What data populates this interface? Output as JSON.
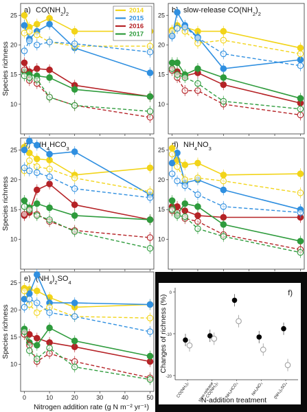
{
  "chart_data": [
    {
      "type": "line",
      "title": "a) CO(NH2)2",
      "x": [
        0,
        2,
        5,
        10,
        20,
        50
      ],
      "ylim": [
        5,
        27
      ],
      "ylabel": "Species richness",
      "series": [
        {
          "name": "2014",
          "values": [
            25,
            23,
            23.5,
            24.5,
            22.3,
            22.3
          ]
        },
        {
          "name": "2015",
          "values": [
            23.3,
            21,
            22.3,
            23.5,
            19.5,
            15.3
          ]
        },
        {
          "name": "2016",
          "values": [
            17,
            15.5,
            16,
            15.8,
            13.2,
            11.3
          ]
        },
        {
          "name": "2017",
          "values": [
            15.5,
            15,
            14.8,
            14.5,
            12.5,
            11.3
          ]
        },
        {
          "name": "2014 (dashed)",
          "values": [
            22,
            22.3,
            21.7,
            20.5,
            19.8,
            19.8
          ]
        },
        {
          "name": "2015 (dashed)",
          "values": [
            19,
            20.7,
            20,
            20.5,
            20.2,
            18.8
          ]
        },
        {
          "name": "2016 (dashed)",
          "values": [
            15.8,
            14,
            13.5,
            11.2,
            9.8,
            7.8
          ]
        },
        {
          "name": "2017 (dashed)",
          "values": [
            14.8,
            14.5,
            14.2,
            11.2,
            9.8,
            8.8
          ]
        }
      ]
    },
    {
      "type": "line",
      "title": "b) slow-release CO(NH2)2",
      "x": [
        0,
        2,
        5,
        10,
        20,
        50
      ],
      "ylim": [
        5,
        27
      ],
      "ylabel": "",
      "series": [
        {
          "name": "2014",
          "values": [
            22.5,
            23.3,
            23,
            22.3,
            22.3,
            19.5
          ]
        },
        {
          "name": "2015",
          "values": [
            21.5,
            25.5,
            23.3,
            21.3,
            16,
            17.5
          ]
        },
        {
          "name": "2016",
          "values": [
            16,
            15.5,
            14.8,
            15.3,
            13.3,
            10.2
          ]
        },
        {
          "name": "2017",
          "values": [
            17,
            17,
            15,
            16,
            14.5,
            11
          ]
        },
        {
          "name": "2014 (dashed)",
          "values": [
            22.3,
            22.8,
            22.3,
            20.3,
            20.8,
            18.5
          ]
        },
        {
          "name": "2015 (dashed)",
          "values": [
            21.5,
            22.8,
            23,
            21.2,
            18.5,
            16.5
          ]
        },
        {
          "name": "2016 (dashed)",
          "values": [
            15.7,
            14.5,
            12.3,
            12.3,
            10,
            8.2
          ]
        },
        {
          "name": "2017 (dashed)",
          "values": [
            16,
            15,
            14.5,
            13.5,
            10.5,
            9.2
          ]
        }
      ]
    },
    {
      "type": "line",
      "title": "c) NH4HCO3",
      "x": [
        0,
        2,
        5,
        10,
        20,
        50
      ],
      "ylim": [
        5,
        27
      ],
      "ylabel": "Species richness",
      "series": [
        {
          "name": "2014",
          "values": [
            25.5,
            24.5,
            23.5,
            23.3,
            20.8,
            22
          ]
        },
        {
          "name": "2015",
          "values": [
            25,
            26.5,
            25.8,
            24.3,
            24.7,
            17.5
          ]
        },
        {
          "name": "2016",
          "values": [
            14,
            14.5,
            18.3,
            19.3,
            15.8,
            13.3
          ]
        },
        {
          "name": "2017",
          "values": [
            16.5,
            15.3,
            16,
            15.3,
            14,
            13.3
          ]
        },
        {
          "name": "2014 (dashed)",
          "values": [
            21.5,
            23.2,
            22.2,
            21.8,
            20.3,
            18
          ]
        },
        {
          "name": "2015 (dashed)",
          "values": [
            22,
            21.5,
            21.2,
            20.5,
            18.5,
            17
          ]
        },
        {
          "name": "2016 (dashed)",
          "values": [
            14.2,
            14.8,
            14.2,
            13,
            11.5,
            10.3
          ]
        },
        {
          "name": "2017 (dashed)",
          "values": [
            15.5,
            15,
            14,
            13.3,
            11.3,
            8.5
          ]
        }
      ]
    },
    {
      "type": "line",
      "title": "d) NH4NO3",
      "x": [
        0,
        2,
        5,
        10,
        20,
        50
      ],
      "xlabel": "Nitrogen addition rate (g N m⁻² yr⁻¹)",
      "ylim": [
        5,
        27
      ],
      "ylabel": "",
      "series": [
        {
          "name": "2014",
          "values": [
            25.3,
            23.3,
            22.5,
            22.8,
            20.8,
            21
          ]
        },
        {
          "name": "2015",
          "values": [
            22.8,
            24.5,
            19.5,
            20,
            18.3,
            15
          ]
        },
        {
          "name": "2016",
          "values": [
            15.5,
            15.5,
            14.8,
            14,
            13.7,
            13.7
          ]
        },
        {
          "name": "2017",
          "values": [
            16.5,
            14.2,
            16,
            15.5,
            12.5,
            9.7
          ]
        },
        {
          "name": "2014 (dashed)",
          "values": [
            24.3,
            22.2,
            20,
            20.3,
            19.8,
            17.8
          ]
        },
        {
          "name": "2015 (dashed)",
          "values": [
            21,
            19.8,
            19,
            17.5,
            15.5,
            14.5
          ]
        },
        {
          "name": "2016 (dashed)",
          "values": [
            14.8,
            14.5,
            13.5,
            13,
            10.8,
            8.3
          ]
        },
        {
          "name": "2017 (dashed)",
          "values": [
            15,
            14,
            13.8,
            11.8,
            10.5,
            7.8
          ]
        }
      ]
    },
    {
      "type": "line",
      "title": "e) (NH4)2SO4",
      "x": [
        0,
        2,
        5,
        10,
        20,
        50
      ],
      "xlabel": "Nitrogen addition rate (g N m⁻² yr⁻¹)",
      "ylim": [
        5,
        27
      ],
      "ylabel": "Species richness",
      "series": [
        {
          "name": "2014",
          "values": [
            24,
            23.8,
            23.5,
            22.3,
            20.5,
            21
          ]
        },
        {
          "name": "2015",
          "values": [
            22,
            23,
            26.5,
            21.3,
            21.3,
            21
          ]
        },
        {
          "name": "2016",
          "values": [
            16,
            15.5,
            14.8,
            14,
            13.2,
            10.5
          ]
        },
        {
          "name": "2017",
          "values": [
            16.5,
            14,
            13.5,
            16.7,
            14.3,
            11.5
          ]
        },
        {
          "name": "2014 (dashed)",
          "values": [
            23.5,
            21,
            19.5,
            20.5,
            18.8,
            18.5
          ]
        },
        {
          "name": "2015 (dashed)",
          "values": [
            20.5,
            22,
            21.3,
            19.5,
            18.8,
            16
          ]
        },
        {
          "name": "2016 (dashed)",
          "values": [
            15.5,
            13.5,
            10.5,
            12,
            10.5,
            7.5
          ]
        },
        {
          "name": "2017 (dashed)",
          "values": [
            16,
            12.5,
            11,
            13,
            9.5,
            7.2
          ]
        }
      ]
    },
    {
      "type": "scatter",
      "title": "f)",
      "categories": [
        "CO(NH2)2",
        "slow-release CO(NH2)2",
        "NH4HCO3",
        "NH4NO3",
        "(NH4)2SO4"
      ],
      "xlabel": "N-addition treatment",
      "ylabel": "Changes of richness (%)",
      "ylim": [
        -21,
        1
      ],
      "yticks": [
        0,
        -10,
        -20
      ],
      "series": [
        {
          "name": "filled",
          "values": [
            -11.5,
            -10.5,
            -2,
            -10.8,
            -8.8
          ]
        },
        {
          "name": "open",
          "values": [
            -12.8,
            -11.2,
            -7,
            -13.8,
            -17.5
          ]
        }
      ]
    }
  ],
  "legend": {
    "placement": "top-right of panel a",
    "entries": [
      "2014",
      "2015",
      "2016",
      "2017"
    ]
  },
  "colors": {
    "2014": "#f2d419",
    "2015": "#2f8fe0",
    "2016": "#b52226",
    "2017": "#2e9b3c"
  },
  "axis": {
    "xticks": [
      "0",
      "10",
      "20",
      "30",
      "40",
      "50"
    ],
    "yticks": [
      "10",
      "15",
      "20",
      "25"
    ]
  },
  "panel_f_ticklabels": [
    "CO(NH₂)₂",
    "slow-release",
    "CO(NH₂)₂",
    "NH₄HCO₃",
    "NH₄NO₃",
    "(NH₄)₂SO₄"
  ]
}
